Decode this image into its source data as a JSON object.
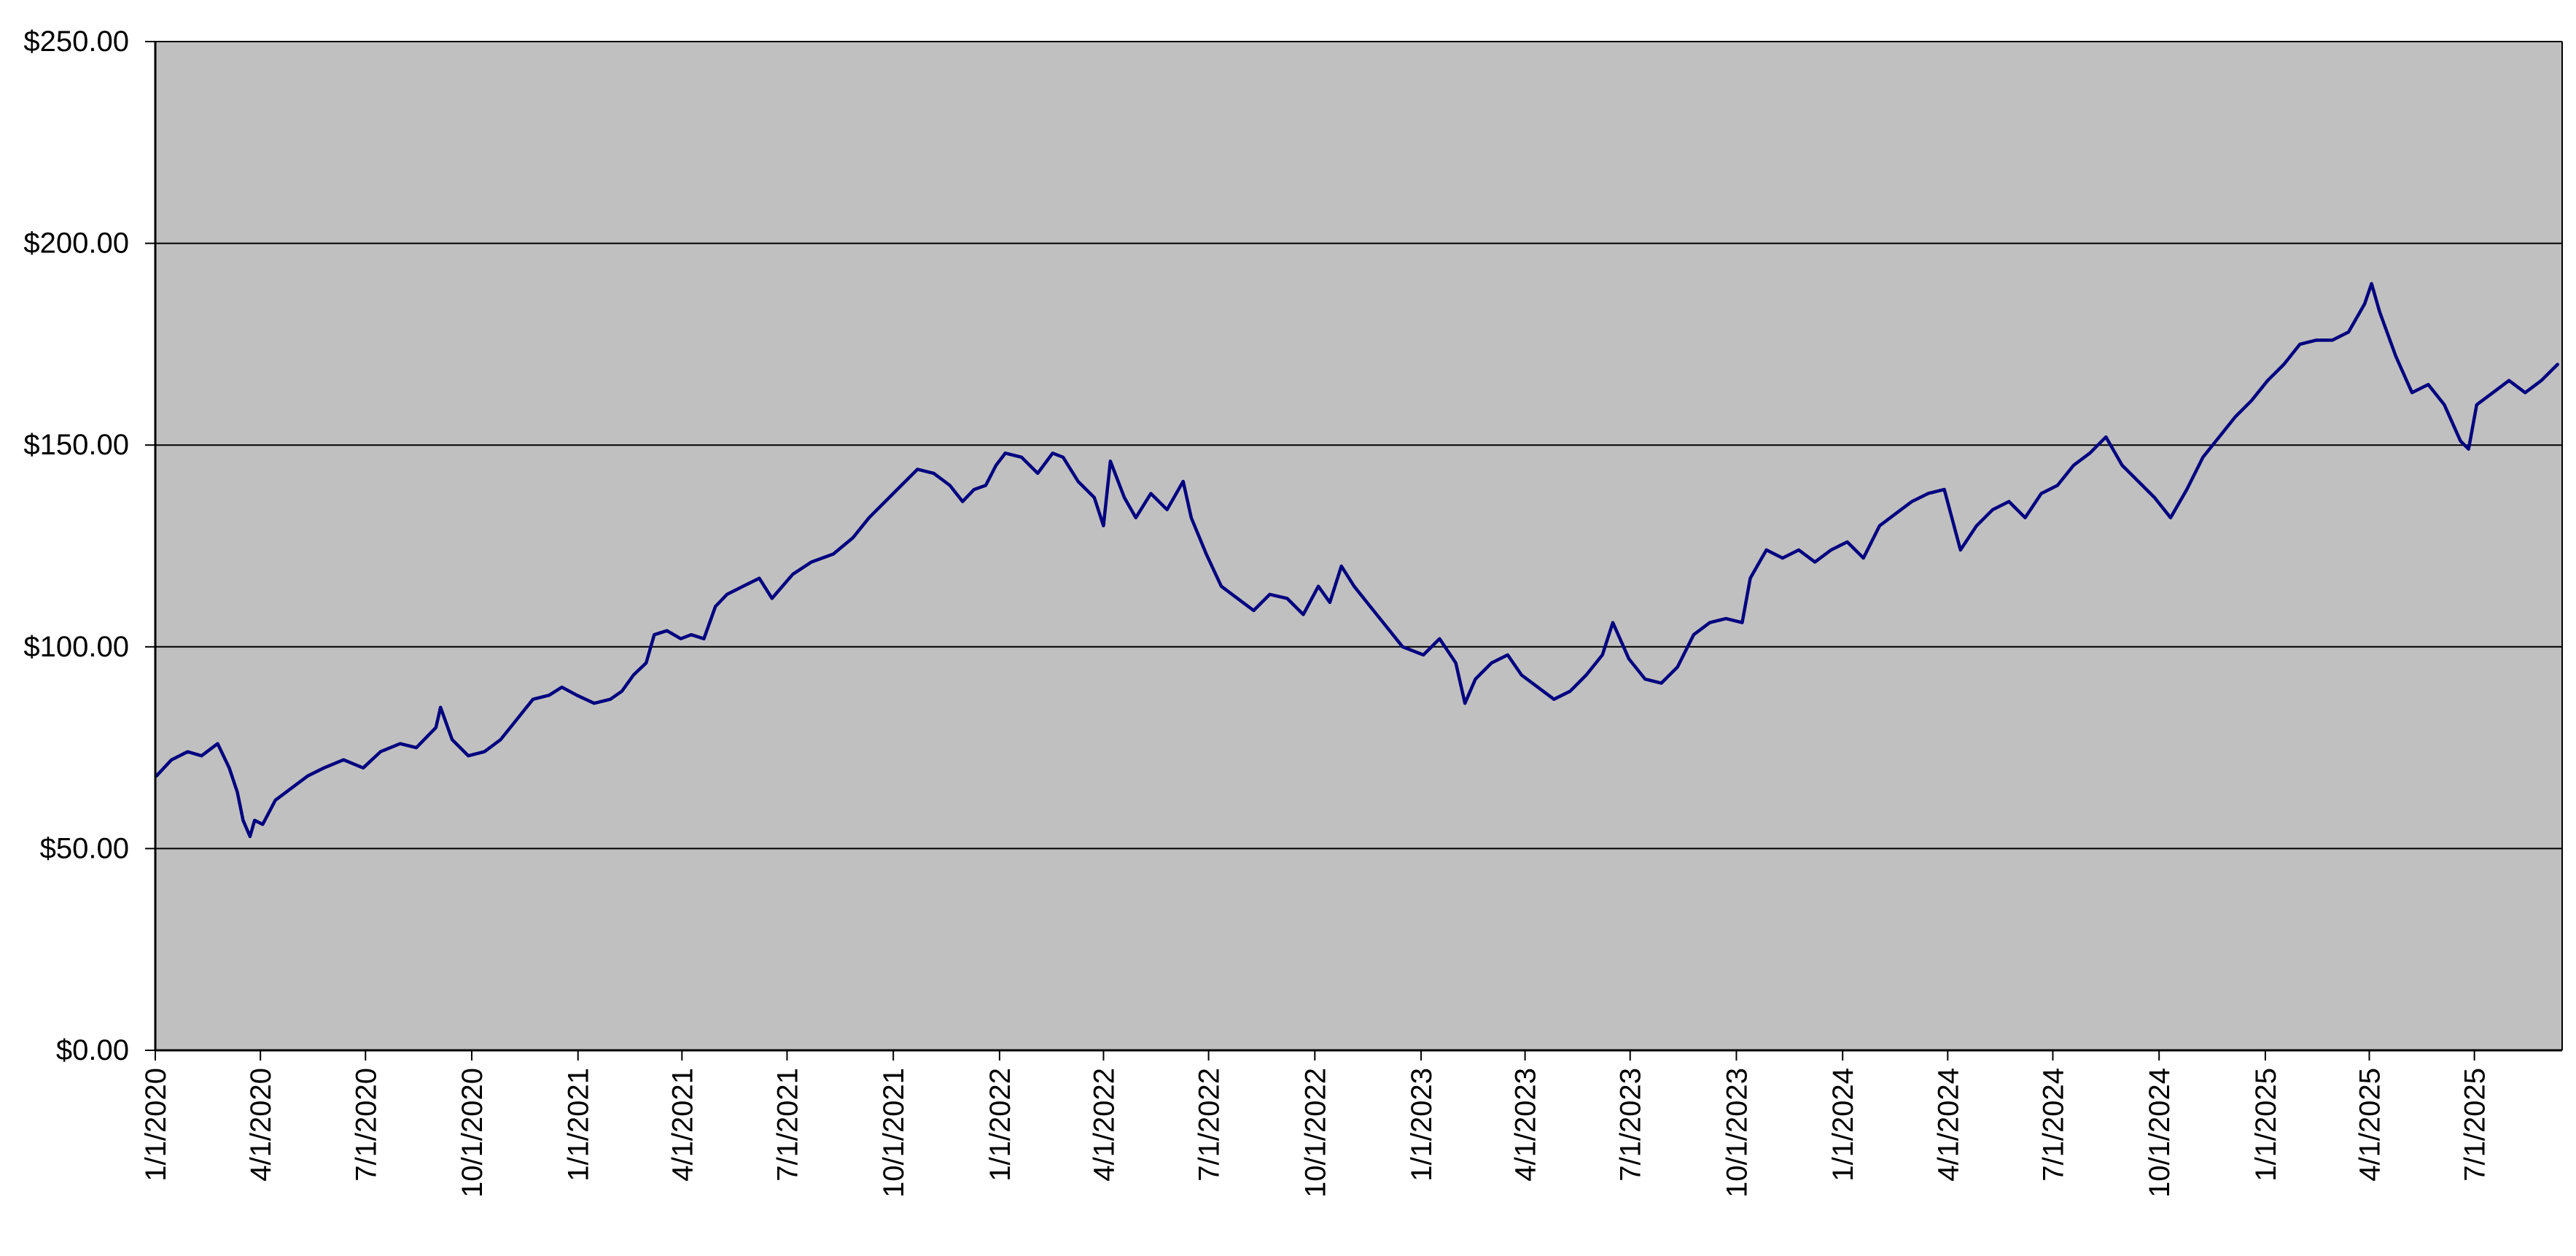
{
  "chart_data": {
    "type": "line",
    "title": "",
    "xlabel": "",
    "ylabel": "",
    "x_tick_labels": [
      "1/1/2020",
      "4/1/2020",
      "7/1/2020",
      "10/1/2020",
      "1/1/2021",
      "4/1/2021",
      "7/1/2021",
      "10/1/2021",
      "1/1/2022",
      "4/1/2022",
      "7/1/2022",
      "10/1/2022",
      "1/1/2023",
      "4/1/2023",
      "7/1/2023",
      "10/1/2023",
      "1/1/2024",
      "4/1/2024",
      "7/1/2024",
      "10/1/2024",
      "1/1/2025",
      "4/1/2025",
      "7/1/2025"
    ],
    "y_tick_labels": [
      "$0.00",
      "$50.00",
      "$100.00",
      "$150.00",
      "$200.00",
      "$250.00"
    ],
    "xlim": [
      "2020-01-01",
      "2025-09-15"
    ],
    "ylim": [
      0,
      250
    ],
    "grid": "horizontal",
    "legend": "none",
    "colors": {
      "plot_background": "#C0C0C0",
      "series_line": "#000080",
      "gridline": "#000000",
      "axis": "#000000"
    },
    "series": [
      {
        "values": [
          [
            "2020-01-02",
            68
          ],
          [
            "2020-01-15",
            72
          ],
          [
            "2020-01-29",
            74
          ],
          [
            "2020-02-10",
            73
          ],
          [
            "2020-02-24",
            76
          ],
          [
            "2020-03-05",
            70
          ],
          [
            "2020-03-12",
            64
          ],
          [
            "2020-03-17",
            57
          ],
          [
            "2020-03-23",
            53
          ],
          [
            "2020-03-27",
            57
          ],
          [
            "2020-04-03",
            56
          ],
          [
            "2020-04-14",
            62
          ],
          [
            "2020-04-28",
            65
          ],
          [
            "2020-05-12",
            68
          ],
          [
            "2020-05-26",
            70
          ],
          [
            "2020-06-12",
            72
          ],
          [
            "2020-06-29",
            70
          ],
          [
            "2020-07-14",
            74
          ],
          [
            "2020-07-31",
            76
          ],
          [
            "2020-08-14",
            75
          ],
          [
            "2020-08-31",
            80
          ],
          [
            "2020-09-04",
            85
          ],
          [
            "2020-09-14",
            77
          ],
          [
            "2020-09-28",
            73
          ],
          [
            "2020-10-12",
            74
          ],
          [
            "2020-10-26",
            77
          ],
          [
            "2020-11-09",
            82
          ],
          [
            "2020-11-23",
            87
          ],
          [
            "2020-12-07",
            88
          ],
          [
            "2020-12-18",
            90
          ],
          [
            "2020-12-31",
            88
          ],
          [
            "2021-01-15",
            86
          ],
          [
            "2021-01-29",
            87
          ],
          [
            "2021-02-08",
            89
          ],
          [
            "2021-02-18",
            93
          ],
          [
            "2021-03-01",
            96
          ],
          [
            "2021-03-08",
            103
          ],
          [
            "2021-03-19",
            104
          ],
          [
            "2021-03-31",
            102
          ],
          [
            "2021-04-09",
            103
          ],
          [
            "2021-04-20",
            102
          ],
          [
            "2021-04-30",
            110
          ],
          [
            "2021-05-10",
            113
          ],
          [
            "2021-05-24",
            115
          ],
          [
            "2021-06-07",
            117
          ],
          [
            "2021-06-18",
            112
          ],
          [
            "2021-07-06",
            118
          ],
          [
            "2021-07-22",
            121
          ],
          [
            "2021-08-10",
            123
          ],
          [
            "2021-08-27",
            127
          ],
          [
            "2021-09-10",
            132
          ],
          [
            "2021-09-24",
            136
          ],
          [
            "2021-10-08",
            140
          ],
          [
            "2021-10-22",
            144
          ],
          [
            "2021-11-05",
            143
          ],
          [
            "2021-11-19",
            140
          ],
          [
            "2021-11-30",
            136
          ],
          [
            "2021-12-10",
            139
          ],
          [
            "2021-12-20",
            140
          ],
          [
            "2021-12-29",
            145
          ],
          [
            "2022-01-06",
            148
          ],
          [
            "2022-01-20",
            147
          ],
          [
            "2022-02-03",
            143
          ],
          [
            "2022-02-16",
            148
          ],
          [
            "2022-02-25",
            147
          ],
          [
            "2022-03-10",
            141
          ],
          [
            "2022-03-24",
            137
          ],
          [
            "2022-04-01",
            130
          ],
          [
            "2022-04-07",
            146
          ],
          [
            "2022-04-19",
            137
          ],
          [
            "2022-04-29",
            132
          ],
          [
            "2022-05-12",
            138
          ],
          [
            "2022-05-26",
            134
          ],
          [
            "2022-06-09",
            141
          ],
          [
            "2022-06-16",
            132
          ],
          [
            "2022-06-29",
            123
          ],
          [
            "2022-07-12",
            115
          ],
          [
            "2022-07-26",
            112
          ],
          [
            "2022-08-09",
            109
          ],
          [
            "2022-08-23",
            113
          ],
          [
            "2022-09-07",
            112
          ],
          [
            "2022-09-21",
            108
          ],
          [
            "2022-10-04",
            115
          ],
          [
            "2022-10-14",
            111
          ],
          [
            "2022-10-24",
            120
          ],
          [
            "2022-11-04",
            115
          ],
          [
            "2022-11-18",
            110
          ],
          [
            "2022-12-02",
            105
          ],
          [
            "2022-12-16",
            100
          ],
          [
            "2023-01-03",
            98
          ],
          [
            "2023-01-17",
            102
          ],
          [
            "2023-01-31",
            96
          ],
          [
            "2023-02-08",
            86
          ],
          [
            "2023-02-17",
            92
          ],
          [
            "2023-03-03",
            96
          ],
          [
            "2023-03-17",
            98
          ],
          [
            "2023-03-29",
            93
          ],
          [
            "2023-04-12",
            90
          ],
          [
            "2023-04-26",
            87
          ],
          [
            "2023-05-10",
            89
          ],
          [
            "2023-05-24",
            93
          ],
          [
            "2023-06-07",
            98
          ],
          [
            "2023-06-16",
            106
          ],
          [
            "2023-06-30",
            97
          ],
          [
            "2023-07-14",
            92
          ],
          [
            "2023-07-28",
            91
          ],
          [
            "2023-08-11",
            95
          ],
          [
            "2023-08-25",
            103
          ],
          [
            "2023-09-08",
            106
          ],
          [
            "2023-09-22",
            107
          ],
          [
            "2023-10-06",
            106
          ],
          [
            "2023-10-13",
            117
          ],
          [
            "2023-10-27",
            124
          ],
          [
            "2023-11-10",
            122
          ],
          [
            "2023-11-24",
            124
          ],
          [
            "2023-12-08",
            121
          ],
          [
            "2023-12-22",
            124
          ],
          [
            "2024-01-05",
            126
          ],
          [
            "2024-01-19",
            122
          ],
          [
            "2024-02-02",
            130
          ],
          [
            "2024-02-16",
            133
          ],
          [
            "2024-03-01",
            136
          ],
          [
            "2024-03-15",
            138
          ],
          [
            "2024-03-29",
            139
          ],
          [
            "2024-04-12",
            124
          ],
          [
            "2024-04-26",
            130
          ],
          [
            "2024-05-10",
            134
          ],
          [
            "2024-05-24",
            136
          ],
          [
            "2024-06-07",
            132
          ],
          [
            "2024-06-21",
            138
          ],
          [
            "2024-07-05",
            140
          ],
          [
            "2024-07-19",
            145
          ],
          [
            "2024-08-02",
            148
          ],
          [
            "2024-08-16",
            152
          ],
          [
            "2024-08-30",
            145
          ],
          [
            "2024-09-13",
            141
          ],
          [
            "2024-09-27",
            137
          ],
          [
            "2024-10-11",
            132
          ],
          [
            "2024-10-25",
            139
          ],
          [
            "2024-11-08",
            147
          ],
          [
            "2024-11-22",
            152
          ],
          [
            "2024-12-06",
            157
          ],
          [
            "2024-12-20",
            161
          ],
          [
            "2025-01-03",
            166
          ],
          [
            "2025-01-17",
            170
          ],
          [
            "2025-01-31",
            175
          ],
          [
            "2025-02-14",
            176
          ],
          [
            "2025-02-28",
            176
          ],
          [
            "2025-03-14",
            178
          ],
          [
            "2025-03-28",
            185
          ],
          [
            "2025-04-03",
            190
          ],
          [
            "2025-04-10",
            183
          ],
          [
            "2025-04-24",
            172
          ],
          [
            "2025-05-08",
            163
          ],
          [
            "2025-05-22",
            165
          ],
          [
            "2025-06-05",
            160
          ],
          [
            "2025-06-19",
            151
          ],
          [
            "2025-06-26",
            149
          ],
          [
            "2025-07-03",
            160
          ],
          [
            "2025-07-17",
            163
          ],
          [
            "2025-07-31",
            166
          ],
          [
            "2025-08-14",
            163
          ],
          [
            "2025-08-28",
            166
          ],
          [
            "2025-09-11",
            170
          ]
        ]
      }
    ]
  }
}
